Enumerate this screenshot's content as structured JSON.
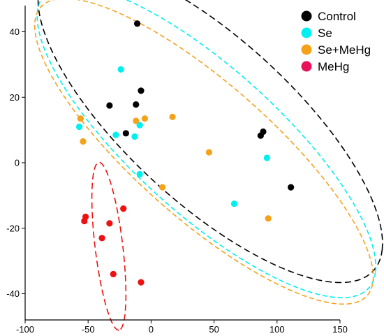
{
  "chart_data": {
    "type": "scatter",
    "xlim": [
      -100,
      150
    ],
    "ylim": [
      -48,
      48
    ],
    "x_ticks": [
      -100,
      -50,
      0,
      50,
      100,
      150
    ],
    "y_ticks": [
      -40,
      -20,
      0,
      20,
      40
    ],
    "grid": false,
    "legend_position": "top-right",
    "series": [
      {
        "name": "Control",
        "color": "#000000",
        "points": [
          {
            "x": -11,
            "y": 42.5
          },
          {
            "x": -8,
            "y": 22
          },
          {
            "x": -33,
            "y": 17.5
          },
          {
            "x": -12,
            "y": 17.8
          },
          {
            "x": -20,
            "y": 9
          },
          {
            "x": 89,
            "y": 9.5
          },
          {
            "x": 87,
            "y": 8.3
          },
          {
            "x": 111,
            "y": -7.5
          }
        ],
        "ellipse": {
          "cx": 47,
          "cy": 12.6,
          "rx": 142,
          "ry": 31,
          "angle_deg": -16,
          "dash": "9 5"
        }
      },
      {
        "name": "Se",
        "color": "#00f0f0",
        "points": [
          {
            "x": -24,
            "y": 28.5
          },
          {
            "x": -57,
            "y": 11
          },
          {
            "x": -9,
            "y": 11.5
          },
          {
            "x": -28,
            "y": 8.5
          },
          {
            "x": -13,
            "y": 8
          },
          {
            "x": -9,
            "y": -3.5
          },
          {
            "x": 92,
            "y": 1.5
          },
          {
            "x": 66,
            "y": -12.5
          }
        ],
        "ellipse": {
          "cx": 44,
          "cy": 6.5,
          "rx": 140,
          "ry": 27.5,
          "angle_deg": -16.5,
          "dash": "7 4"
        }
      },
      {
        "name": "Se+MeHg",
        "color": "#f5a21b",
        "points": [
          {
            "x": -56,
            "y": 13.5
          },
          {
            "x": -54,
            "y": 6.5
          },
          {
            "x": -12,
            "y": 12.8
          },
          {
            "x": -5,
            "y": 13.5
          },
          {
            "x": 17,
            "y": 14
          },
          {
            "x": 46,
            "y": 3.2
          },
          {
            "x": 9,
            "y": -7.5
          },
          {
            "x": 93,
            "y": -17
          }
        ],
        "ellipse": {
          "cx": 42,
          "cy": 3.5,
          "rx": 140,
          "ry": 25.5,
          "angle_deg": -16.5,
          "dash": "7 4"
        }
      },
      {
        "name": "MeHg",
        "color": "#ee1111",
        "points": [
          {
            "x": -52,
            "y": -16.5
          },
          {
            "x": -53,
            "y": -17.8
          },
          {
            "x": -22,
            "y": -14
          },
          {
            "x": -33,
            "y": -18.5
          },
          {
            "x": -39,
            "y": -23
          },
          {
            "x": -30,
            "y": -34
          },
          {
            "x": -8,
            "y": -36.5
          }
        ],
        "ellipse": {
          "cx": -33.5,
          "cy": -25.5,
          "rx": 27,
          "ry": 10.5,
          "angle_deg": -70,
          "dash": "9 5"
        }
      }
    ]
  },
  "legend": {
    "items": [
      {
        "label": "Control",
        "color": "#000000"
      },
      {
        "label": "Se",
        "color": "#00f0f0"
      },
      {
        "label": "Se+MeHg",
        "color": "#f5a21b"
      },
      {
        "label": "MeHg",
        "color": "#e8115b"
      }
    ]
  }
}
